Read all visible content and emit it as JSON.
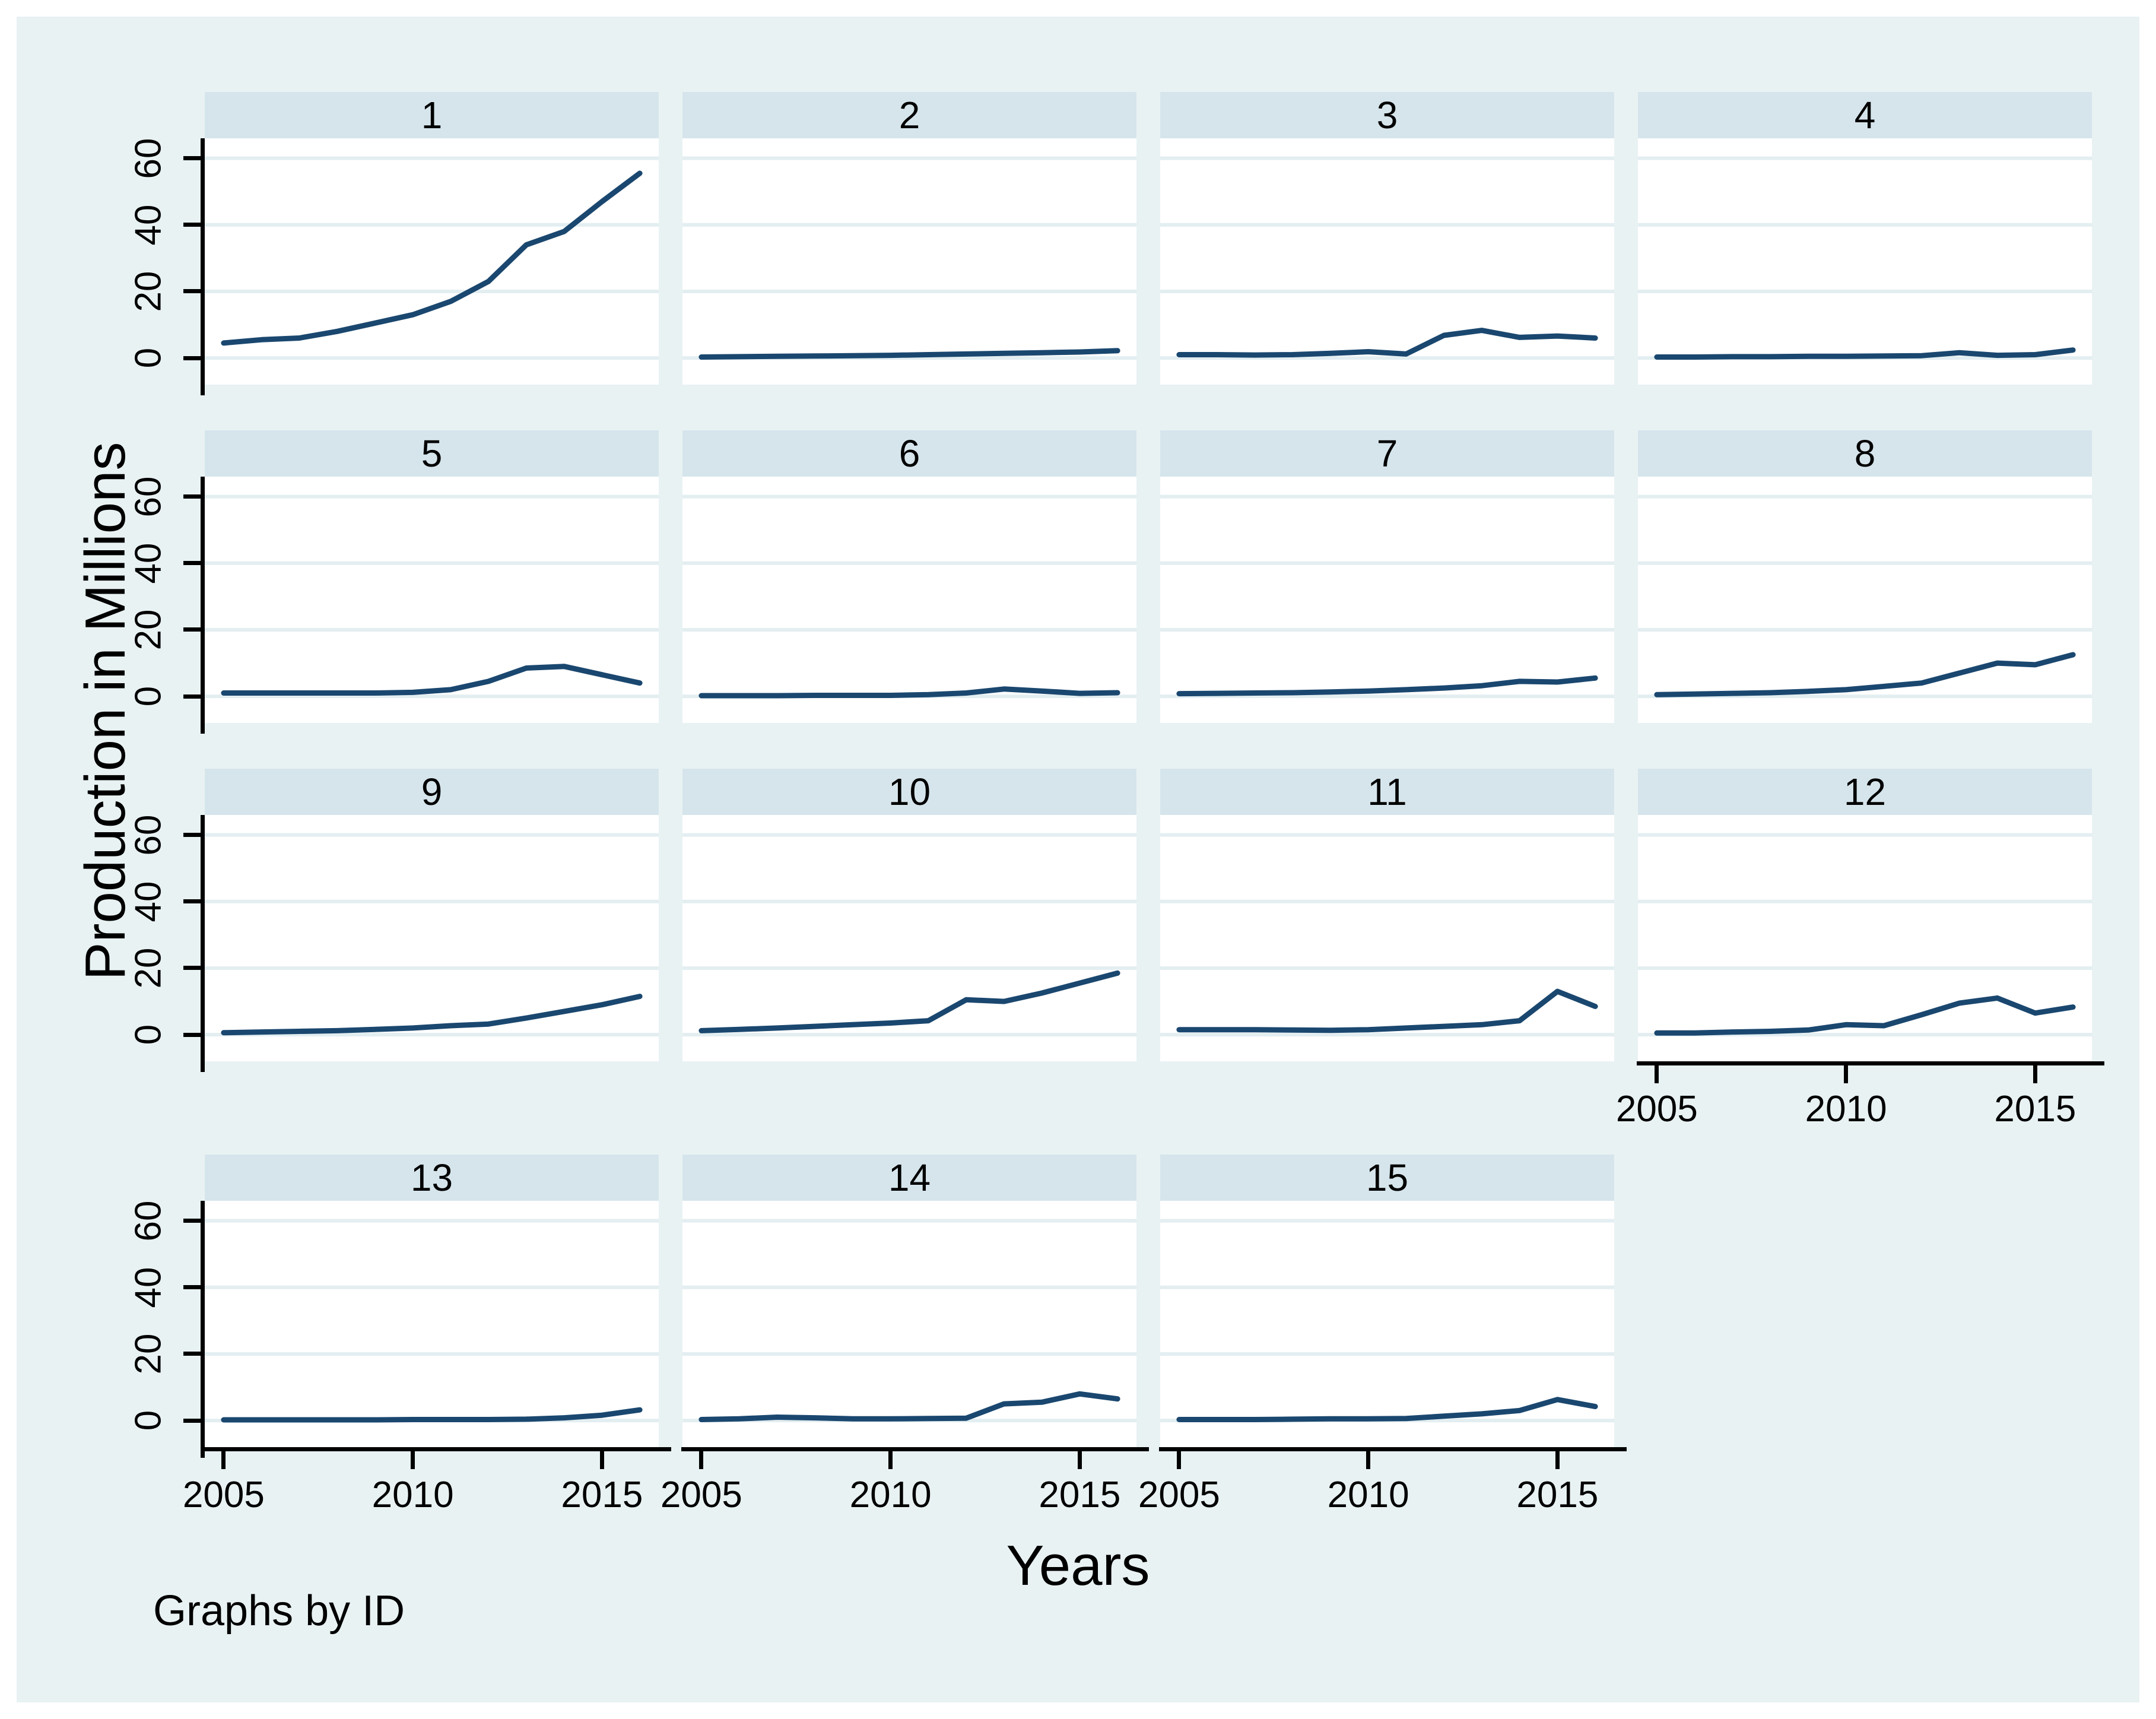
{
  "figure": {
    "ylabel": "Production in Millions",
    "xlabel": "Years",
    "note": "Graphs by ID",
    "colors": {
      "canvas_bg": "#e9f2f3",
      "panel_header_bg": "#d6e5ec",
      "plot_bg": "#ffffff",
      "gridline": "#e3eef1",
      "line": "#1a476f",
      "axis": "#000000",
      "text": "#000000"
    }
  },
  "chart_data": {
    "type": "line",
    "title": "",
    "ylabel": "Production in Millions",
    "xlabel": "Years",
    "note": "Graphs by ID",
    "facet_by": "ID",
    "x": [
      2005,
      2006,
      2007,
      2008,
      2009,
      2010,
      2011,
      2012,
      2013,
      2014,
      2015,
      2016
    ],
    "xticks": [
      2005,
      2010,
      2015
    ],
    "yticks": [
      0,
      20,
      40,
      60
    ],
    "xlim": [
      2004.5,
      2016.5
    ],
    "ylim": [
      -8,
      66
    ],
    "grid": true,
    "legend_position": "none",
    "series": [
      {
        "name": "1",
        "values": [
          4.5,
          5.5,
          6,
          8,
          10.5,
          13,
          17,
          23,
          34,
          38,
          47,
          55.5
        ]
      },
      {
        "name": "2",
        "values": [
          0.3,
          0.4,
          0.5,
          0.6,
          0.7,
          0.8,
          1,
          1.2,
          1.4,
          1.6,
          1.8,
          2.2
        ]
      },
      {
        "name": "3",
        "values": [
          1,
          1,
          0.9,
          1,
          1.4,
          1.9,
          1.2,
          6.8,
          8.3,
          6.2,
          6.6,
          6
        ]
      },
      {
        "name": "4",
        "values": [
          0.3,
          0.3,
          0.4,
          0.4,
          0.5,
          0.5,
          0.6,
          0.7,
          1.6,
          0.8,
          1,
          2.4
        ]
      },
      {
        "name": "5",
        "values": [
          1,
          1,
          1,
          1,
          1,
          1.2,
          2,
          4.5,
          8.5,
          9,
          6.5,
          4
        ]
      },
      {
        "name": "6",
        "values": [
          0.2,
          0.2,
          0.2,
          0.3,
          0.3,
          0.3,
          0.5,
          1,
          2.2,
          1.6,
          0.9,
          1.1
        ]
      },
      {
        "name": "7",
        "values": [
          0.8,
          0.9,
          1,
          1.1,
          1.3,
          1.6,
          2,
          2.5,
          3.2,
          4.5,
          4.3,
          5.5
        ]
      },
      {
        "name": "8",
        "values": [
          0.5,
          0.7,
          0.9,
          1.1,
          1.5,
          2,
          3,
          4,
          7,
          10,
          9.5,
          12.5
        ]
      },
      {
        "name": "9",
        "values": [
          0.6,
          0.8,
          1,
          1.2,
          1.6,
          2,
          2.7,
          3.2,
          5,
          7,
          9,
          11.5
        ]
      },
      {
        "name": "10",
        "values": [
          1.2,
          1.6,
          2,
          2.5,
          3,
          3.5,
          4.2,
          10.5,
          10,
          12.5,
          15.5,
          18.5
        ]
      },
      {
        "name": "11",
        "values": [
          1.5,
          1.5,
          1.5,
          1.4,
          1.3,
          1.5,
          2,
          2.5,
          3,
          4.2,
          13,
          8.5
        ]
      },
      {
        "name": "12",
        "values": [
          0.5,
          0.5,
          0.8,
          1,
          1.4,
          3,
          2.7,
          6,
          9.5,
          11,
          6.5,
          8.3
        ]
      },
      {
        "name": "13",
        "values": [
          0.2,
          0.2,
          0.2,
          0.2,
          0.2,
          0.3,
          0.3,
          0.3,
          0.4,
          0.8,
          1.6,
          3.2
        ]
      },
      {
        "name": "14",
        "values": [
          0.3,
          0.5,
          1,
          0.8,
          0.5,
          0.5,
          0.6,
          0.7,
          5,
          5.5,
          8,
          6.5
        ]
      },
      {
        "name": "15",
        "values": [
          0.3,
          0.3,
          0.3,
          0.4,
          0.5,
          0.5,
          0.6,
          1.3,
          2,
          3,
          6.3,
          4.2
        ]
      }
    ]
  }
}
